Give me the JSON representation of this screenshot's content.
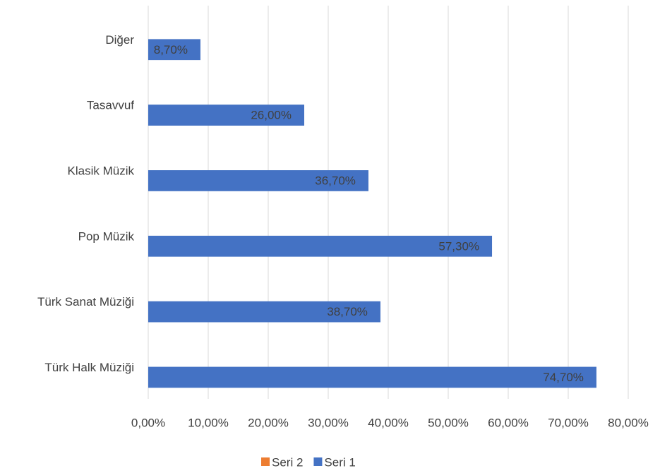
{
  "chart_data": {
    "type": "bar",
    "orientation": "horizontal",
    "categories": [
      "Diğer",
      "Tasavvuf",
      "Klasik Müzik",
      "Pop Müzik",
      "Türk Sanat Müziği",
      "Türk Halk Müziği"
    ],
    "series": [
      {
        "name": "Seri 2",
        "color": "#ed7d31",
        "values": [
          null,
          null,
          null,
          null,
          null,
          null
        ]
      },
      {
        "name": "Seri 1",
        "color": "#4472c4",
        "values": [
          8.7,
          26.0,
          36.7,
          57.3,
          38.7,
          74.7
        ],
        "value_labels": [
          "8,70%",
          "26,00%",
          "36,70%",
          "57,30%",
          "38,70%",
          "74,70%"
        ]
      }
    ],
    "xlim": [
      0,
      80
    ],
    "xticks": [
      {
        "value": 0,
        "label": "0,00%"
      },
      {
        "value": 10,
        "label": "10,00%"
      },
      {
        "value": 20,
        "label": "20,00%"
      },
      {
        "value": 30,
        "label": "30,00%"
      },
      {
        "value": 40,
        "label": "40,00%"
      },
      {
        "value": 50,
        "label": "50,00%"
      },
      {
        "value": 60,
        "label": "60,00%"
      },
      {
        "value": 70,
        "label": "70,00%"
      },
      {
        "value": 80,
        "label": "80,00%"
      }
    ],
    "grid": true,
    "legend": "bottom"
  }
}
